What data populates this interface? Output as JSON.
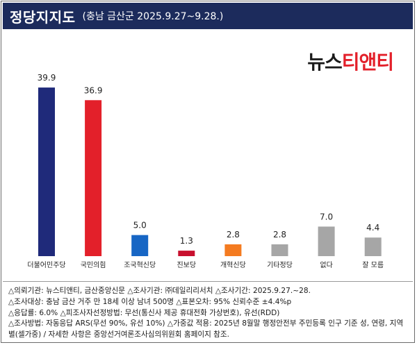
{
  "header": {
    "title": "정당지지도",
    "subtitle": "(충남 금산군 2025.9.27~9.28.)"
  },
  "logo": {
    "part1": "뉴스",
    "part2": "티앤티"
  },
  "chart_data": {
    "type": "bar",
    "categories": [
      "더불어민주당",
      "국민의힘",
      "조국혁신당",
      "진보당",
      "개혁신당",
      "기타정당",
      "없다",
      "잘 모름"
    ],
    "values": [
      39.9,
      36.9,
      5.0,
      1.3,
      2.8,
      2.8,
      7.0,
      4.4
    ],
    "value_labels": [
      "39.9",
      "36.9",
      "5.0",
      "1.3",
      "2.8",
      "2.8",
      "7.0",
      "4.4"
    ],
    "colors": [
      "#1f2a7a",
      "#e3202a",
      "#1766c4",
      "#c8102e",
      "#f47b20",
      "#a6a6a6",
      "#a6a6a6",
      "#a6a6a6"
    ],
    "ylim": [
      0,
      45
    ],
    "grid": false,
    "title": "",
    "xlabel": "",
    "ylabel": ""
  },
  "notes": [
    "△의뢰기관: 뉴스티앤티, 금산중앙신문 △조사기관: ㈜데일리리서치 △조사기간: 2025.9.27.~28.",
    "△조사대상: 충남 금산 거주 만 18세 이상 남녀 500명 △표본오차: 95% 신뢰수준 ±4.4%p",
    "△응답률: 6.0% △피조사자선정방법: 무선(통신사 제공 휴대전화 가상번호), 유선(RDD)",
    "△조사방법: 자동응답 ARS(무선 90%, 유선 10%) △가중값 적용: 2025년 8월말 행정안전부 주민등록 인구 기준 성, 연령, 지역별(셀가중) / 자세한 사항은 중앙선거여론조사심의위원회 홈페이지 참조."
  ]
}
